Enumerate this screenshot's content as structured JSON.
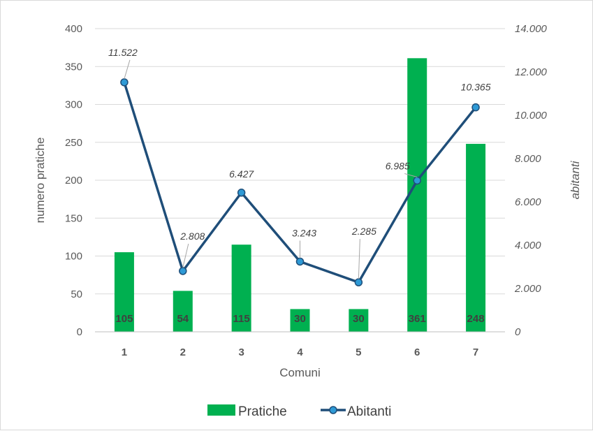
{
  "chart_data": {
    "type": "bar",
    "title": "",
    "xlabel": "Comuni",
    "ylabel": "numero pratiche",
    "y2label": "abitanti",
    "categories": [
      "1",
      "2",
      "3",
      "4",
      "5",
      "6",
      "7"
    ],
    "ylim": [
      0,
      400
    ],
    "y2lim": [
      0,
      14000
    ],
    "yticks": [
      "0",
      "50",
      "100",
      "150",
      "200",
      "250",
      "300",
      "350",
      "400"
    ],
    "y2ticks": [
      "0",
      "2.000",
      "4.000",
      "6.000",
      "8.000",
      "10.000",
      "12.000",
      "14.000"
    ],
    "grid": true,
    "legend_position": "bottom",
    "series": [
      {
        "name": "Pratiche",
        "type": "bar",
        "axis": "left",
        "color": "#00b050",
        "values": [
          105,
          54,
          115,
          30,
          30,
          361,
          248
        ],
        "labels": [
          "105",
          "54",
          "115",
          "30",
          "30",
          "361",
          "248"
        ]
      },
      {
        "name": "Abitanti",
        "type": "line",
        "axis": "right",
        "color": "#1f4e79",
        "marker_color": "#2e9ad6",
        "values": [
          11522,
          2808,
          6427,
          3243,
          2285,
          6985,
          10365
        ],
        "labels": [
          "11.522",
          "2.808",
          "6.427",
          "3.243",
          "2.285",
          "6.985",
          "10.365"
        ]
      }
    ]
  }
}
